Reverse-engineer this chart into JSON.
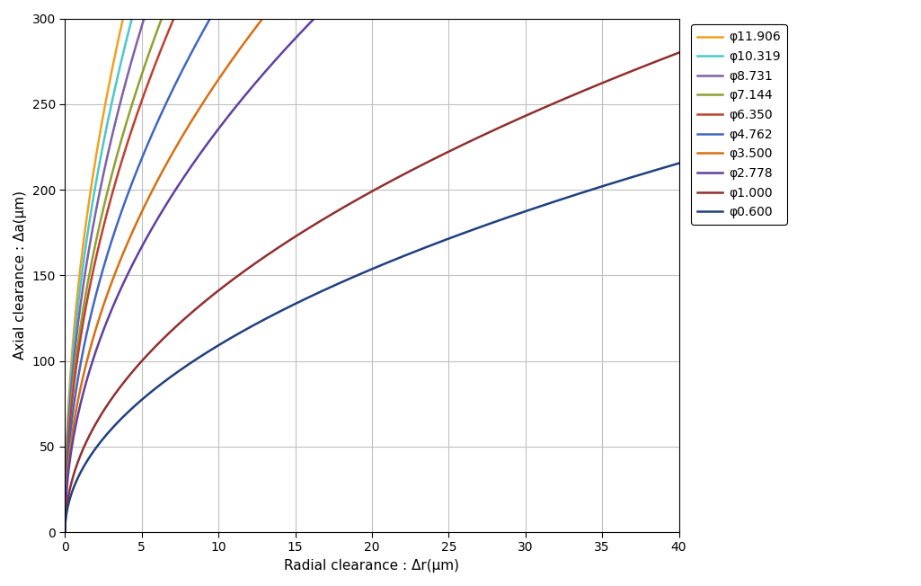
{
  "series": [
    {
      "label": "φ11.906",
      "diameter": 11.906,
      "color": "#F4A020"
    },
    {
      "label": "φ10.319",
      "diameter": 10.319,
      "color": "#4AC8C8"
    },
    {
      "label": "φ8.731",
      "diameter": 8.731,
      "color": "#8060A8"
    },
    {
      "label": "φ7.144",
      "diameter": 7.144,
      "color": "#90A030"
    },
    {
      "label": "φ6.350",
      "diameter": 6.35,
      "color": "#C04030"
    },
    {
      "label": "φ4.762",
      "diameter": 4.762,
      "color": "#4068C0"
    },
    {
      "label": "φ3.500",
      "diameter": 3.5,
      "color": "#D87010"
    },
    {
      "label": "φ2.778",
      "diameter": 2.778,
      "color": "#6040A0"
    },
    {
      "label": "φ1.000",
      "diameter": 1.0,
      "color": "#903030"
    },
    {
      "label": "φ0.600",
      "diameter": 0.6,
      "color": "#204080"
    }
  ],
  "xlabel": "Radial clearance : Δr(μm)",
  "ylabel": "Axial clearance : Δa(μm)",
  "xlim": [
    0,
    40
  ],
  "ylim": [
    0,
    300
  ],
  "xticks": [
    0,
    5,
    10,
    15,
    20,
    25,
    30,
    35,
    40
  ],
  "yticks": [
    0,
    50,
    100,
    150,
    200,
    250,
    300
  ],
  "grid_color": "#C0C0C0",
  "background_color": "#FFFFFF",
  "line_width": 1.8,
  "scale_factor": 1000
}
